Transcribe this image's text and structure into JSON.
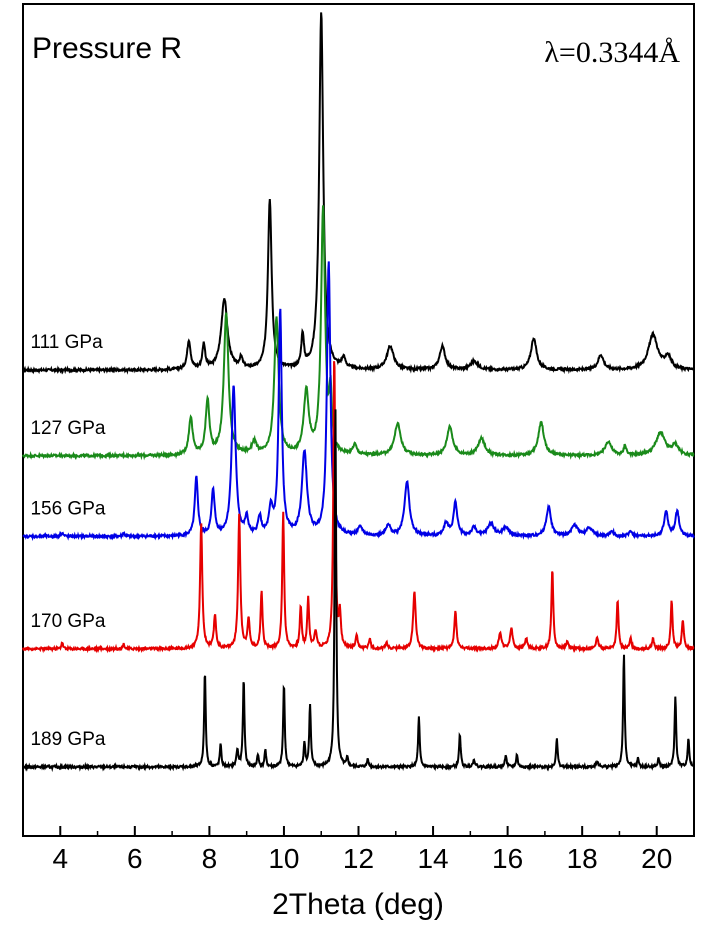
{
  "chart_data": {
    "type": "line",
    "title": "Pressure R",
    "annotation": "λ=0.3344Å",
    "xlabel": "2Theta (deg)",
    "ylabel": "",
    "xlim": [
      3,
      21
    ],
    "ylim": [
      0,
      1
    ],
    "y_ticks_shown": false,
    "grid": false,
    "x_ticks": [
      4,
      6,
      8,
      10,
      12,
      14,
      16,
      18,
      20
    ],
    "x_tick_labels": [
      "4",
      "6",
      "8",
      "10",
      "12",
      "14",
      "16",
      "18",
      "20"
    ],
    "series": [
      {
        "name": "111 GPa",
        "color": "#000000",
        "baseline": 0.56,
        "peaks": [
          [
            7.45,
            0.035,
            0.11
          ],
          [
            7.85,
            0.03,
            0.09
          ],
          [
            8.4,
            0.085,
            0.2
          ],
          [
            8.85,
            0.012,
            0.1
          ],
          [
            9.62,
            0.205,
            0.12
          ],
          [
            10.5,
            0.04,
            0.08
          ],
          [
            11.0,
            0.43,
            0.13
          ],
          [
            11.6,
            0.012,
            0.12
          ],
          [
            12.85,
            0.028,
            0.22
          ],
          [
            14.25,
            0.028,
            0.18
          ],
          [
            15.1,
            0.01,
            0.25
          ],
          [
            16.7,
            0.038,
            0.18
          ],
          [
            18.5,
            0.018,
            0.18
          ],
          [
            19.9,
            0.042,
            0.3
          ],
          [
            20.3,
            0.015,
            0.2
          ]
        ]
      },
      {
        "name": "127 GPa",
        "color": "#1a8a1a",
        "baseline": 0.457,
        "peaks": [
          [
            7.5,
            0.045,
            0.12
          ],
          [
            7.95,
            0.065,
            0.12
          ],
          [
            8.45,
            0.17,
            0.15
          ],
          [
            9.2,
            0.015,
            0.15
          ],
          [
            9.8,
            0.165,
            0.14
          ],
          [
            10.6,
            0.075,
            0.16
          ],
          [
            11.05,
            0.295,
            0.13
          ],
          [
            11.25,
            0.065,
            0.08
          ],
          [
            11.9,
            0.012,
            0.12
          ],
          [
            13.05,
            0.038,
            0.2
          ],
          [
            14.45,
            0.035,
            0.18
          ],
          [
            15.3,
            0.02,
            0.22
          ],
          [
            16.9,
            0.04,
            0.18
          ],
          [
            18.7,
            0.017,
            0.2
          ],
          [
            19.15,
            0.012,
            0.08
          ],
          [
            20.1,
            0.027,
            0.3
          ],
          [
            20.5,
            0.012,
            0.2
          ]
        ]
      },
      {
        "name": "156 GPa",
        "color": "#0000e6",
        "baseline": 0.36,
        "peaks": [
          [
            4.05,
            0.005,
            0.06
          ],
          [
            5.7,
            0.004,
            0.06
          ],
          [
            7.65,
            0.07,
            0.1
          ],
          [
            8.1,
            0.055,
            0.1
          ],
          [
            8.65,
            0.18,
            0.13
          ],
          [
            9.0,
            0.02,
            0.1
          ],
          [
            9.35,
            0.022,
            0.1
          ],
          [
            9.9,
            0.27,
            0.1
          ],
          [
            9.65,
            0.03,
            0.12
          ],
          [
            10.55,
            0.1,
            0.16
          ],
          [
            11.2,
            0.33,
            0.11
          ],
          [
            12.05,
            0.01,
            0.15
          ],
          [
            12.8,
            0.012,
            0.15
          ],
          [
            13.3,
            0.065,
            0.16
          ],
          [
            14.35,
            0.015,
            0.15
          ],
          [
            14.6,
            0.04,
            0.12
          ],
          [
            15.1,
            0.01,
            0.15
          ],
          [
            15.55,
            0.015,
            0.2
          ],
          [
            15.95,
            0.01,
            0.2
          ],
          [
            17.1,
            0.035,
            0.15
          ],
          [
            17.8,
            0.013,
            0.2
          ],
          [
            18.2,
            0.01,
            0.2
          ],
          [
            18.8,
            0.006,
            0.12
          ],
          [
            19.3,
            0.006,
            0.12
          ],
          [
            20.25,
            0.03,
            0.12
          ],
          [
            20.55,
            0.03,
            0.12
          ]
        ]
      },
      {
        "name": "170 GPa",
        "color": "#e60000",
        "baseline": 0.225,
        "peaks": [
          [
            4.05,
            0.008,
            0.05
          ],
          [
            5.7,
            0.006,
            0.05
          ],
          [
            7.78,
            0.15,
            0.07
          ],
          [
            8.15,
            0.04,
            0.07
          ],
          [
            8.8,
            0.16,
            0.07
          ],
          [
            9.05,
            0.035,
            0.07
          ],
          [
            9.4,
            0.07,
            0.06
          ],
          [
            9.98,
            0.165,
            0.06
          ],
          [
            10.45,
            0.05,
            0.06
          ],
          [
            10.65,
            0.06,
            0.06
          ],
          [
            10.85,
            0.02,
            0.08
          ],
          [
            11.35,
            0.355,
            0.06
          ],
          [
            11.5,
            0.04,
            0.06
          ],
          [
            11.95,
            0.015,
            0.06
          ],
          [
            12.3,
            0.012,
            0.06
          ],
          [
            12.75,
            0.008,
            0.06
          ],
          [
            13.5,
            0.07,
            0.08
          ],
          [
            14.6,
            0.045,
            0.07
          ],
          [
            15.8,
            0.02,
            0.08
          ],
          [
            16.1,
            0.025,
            0.08
          ],
          [
            16.5,
            0.012,
            0.08
          ],
          [
            17.2,
            0.095,
            0.06
          ],
          [
            17.6,
            0.008,
            0.08
          ],
          [
            18.4,
            0.012,
            0.08
          ],
          [
            18.95,
            0.057,
            0.06
          ],
          [
            19.3,
            0.012,
            0.06
          ],
          [
            19.9,
            0.012,
            0.06
          ],
          [
            20.4,
            0.057,
            0.06
          ],
          [
            20.7,
            0.035,
            0.06
          ]
        ]
      },
      {
        "name": "189 GPa",
        "color": "#000000",
        "baseline": 0.083,
        "peaks": [
          [
            7.88,
            0.115,
            0.05
          ],
          [
            8.3,
            0.027,
            0.05
          ],
          [
            8.75,
            0.02,
            0.06
          ],
          [
            8.92,
            0.105,
            0.05
          ],
          [
            9.3,
            0.015,
            0.05
          ],
          [
            9.5,
            0.02,
            0.05
          ],
          [
            10.0,
            0.1,
            0.05
          ],
          [
            10.55,
            0.03,
            0.05
          ],
          [
            10.7,
            0.075,
            0.05
          ],
          [
            11.38,
            0.435,
            0.05
          ],
          [
            11.7,
            0.01,
            0.05
          ],
          [
            12.25,
            0.01,
            0.05
          ],
          [
            13.62,
            0.06,
            0.05
          ],
          [
            14.72,
            0.04,
            0.05
          ],
          [
            15.1,
            0.008,
            0.08
          ],
          [
            15.95,
            0.015,
            0.05
          ],
          [
            16.25,
            0.015,
            0.05
          ],
          [
            17.32,
            0.035,
            0.05
          ],
          [
            18.4,
            0.006,
            0.08
          ],
          [
            19.12,
            0.135,
            0.05
          ],
          [
            19.5,
            0.01,
            0.05
          ],
          [
            20.05,
            0.01,
            0.05
          ],
          [
            20.5,
            0.085,
            0.05
          ],
          [
            20.85,
            0.035,
            0.05
          ]
        ]
      }
    ]
  }
}
